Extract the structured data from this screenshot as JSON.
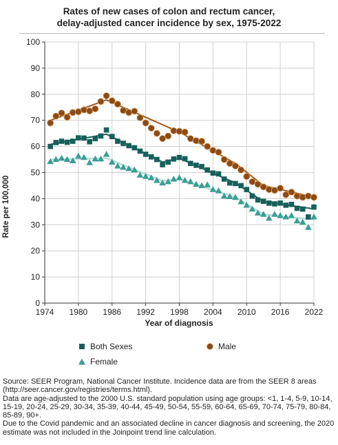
{
  "title_line1": "Rates of new cases of colon and rectum cancer,",
  "title_line2": "delay-adjusted cancer incidence by sex, 1975-2022",
  "legend": {
    "both": "Both Sexes",
    "male": "Male",
    "female": "Female"
  },
  "footer": {
    "line1": "Source: SEER Program, National Cancer Institute. Incidence data are from the SEER 8 areas (http://seer.cancer.gov/registries/terms.html).",
    "line2": "Data are age-adjusted to the 2000 U.S. standard population using age groups: <1, 1-4, 5-9, 10-14, 15-19, 20-24, 25-29, 30-34, 35-39, 40-44, 45-49, 50-54, 55-59, 60-64, 65-69, 70-74, 75-79, 80-84, 85-89, 90+.",
    "line3": "Due to the Covid pandemic and an associated decline in cancer diagnosis and screening, the 2020 estimate was not included in the Joinpoint trend line calculation."
  },
  "colors": {
    "both": "#17605a",
    "male": "#8b4a16",
    "female": "#3a9e94",
    "grid": "#cfcfcf"
  },
  "chart_data": {
    "type": "scatter",
    "title": "Rates of new cases of colon and rectum cancer, delay-adjusted cancer incidence by sex, 1975-2022",
    "xlabel": "Year of diagnosis",
    "ylabel": "Rate per 100,000",
    "xlim": [
      1974,
      2022
    ],
    "ylim": [
      0,
      100
    ],
    "x_ticks": [
      1974,
      1980,
      1986,
      1992,
      1998,
      2004,
      2010,
      2016,
      2022
    ],
    "y_ticks": [
      0,
      10,
      20,
      30,
      40,
      50,
      60,
      70,
      80,
      90,
      100
    ],
    "grid": true,
    "legend_position": "bottom",
    "x": [
      1975,
      1976,
      1977,
      1978,
      1979,
      1980,
      1981,
      1982,
      1983,
      1984,
      1985,
      1986,
      1987,
      1988,
      1989,
      1990,
      1991,
      1992,
      1993,
      1994,
      1995,
      1996,
      1997,
      1998,
      1999,
      2000,
      2001,
      2002,
      2003,
      2004,
      2005,
      2006,
      2007,
      2008,
      2009,
      2010,
      2011,
      2012,
      2013,
      2014,
      2015,
      2016,
      2017,
      2018,
      2019,
      2020,
      2021,
      2022
    ],
    "series": [
      {
        "name": "Male",
        "marker": "circle",
        "values": [
          69.0,
          71.6,
          72.8,
          71.2,
          73.0,
          73.3,
          74.0,
          73.6,
          74.4,
          77.2,
          79.4,
          77.5,
          76.2,
          73.8,
          73.0,
          73.5,
          71.0,
          69.0,
          67.0,
          65.0,
          63.0,
          64.0,
          66.0,
          65.8,
          65.5,
          63.0,
          62.2,
          62.0,
          60.0,
          58.5,
          57.8,
          55.0,
          53.5,
          52.5,
          51.0,
          48.5,
          46.5,
          45.5,
          44.5,
          43.5,
          43.2,
          44.0,
          41.5,
          42.5,
          41.0,
          40.5,
          41.0,
          40.5
        ],
        "trend": [
          [
            1975,
            70.0
          ],
          [
            1985,
            77.8
          ],
          [
            1998,
            65.5
          ],
          [
            2008,
            53.5
          ],
          [
            2013,
            45.0
          ],
          [
            2022,
            40.6
          ]
        ]
      },
      {
        "name": "Both Sexes",
        "marker": "square",
        "values": [
          60.0,
          61.5,
          62.0,
          61.6,
          62.0,
          63.3,
          63.2,
          61.8,
          63.0,
          64.0,
          66.3,
          63.8,
          62.0,
          61.2,
          60.3,
          59.5,
          58.2,
          57.0,
          56.0,
          55.0,
          53.0,
          54.0,
          55.2,
          55.8,
          55.3,
          53.5,
          52.8,
          52.3,
          51.0,
          49.8,
          49.5,
          47.5,
          46.0,
          45.8,
          45.0,
          43.5,
          41.0,
          39.5,
          39.0,
          38.3,
          38.0,
          38.3,
          37.5,
          37.8,
          36.3,
          36.0,
          33.0,
          36.8
        ],
        "trend": [
          [
            1975,
            60.8
          ],
          [
            1985,
            64.7
          ],
          [
            1995,
            54.0
          ],
          [
            1998,
            55.5
          ],
          [
            2008,
            46.0
          ],
          [
            2013,
            38.9
          ],
          [
            2022,
            36.1
          ]
        ]
      },
      {
        "name": "Female",
        "marker": "triangle",
        "values": [
          54.2,
          55.0,
          55.5,
          55.0,
          54.5,
          56.3,
          55.8,
          53.8,
          55.2,
          55.2,
          57.0,
          54.0,
          52.5,
          52.0,
          51.5,
          51.0,
          49.0,
          48.5,
          48.0,
          47.0,
          46.0,
          46.5,
          47.5,
          48.0,
          47.0,
          46.5,
          45.5,
          45.0,
          45.3,
          43.5,
          43.0,
          41.0,
          40.8,
          40.5,
          38.8,
          37.5,
          36.0,
          34.5,
          34.0,
          32.5,
          34.0,
          33.5,
          33.0,
          33.5,
          31.5,
          31.0,
          29.0,
          33.0
        ],
        "trend": [
          [
            1975,
            55.0
          ],
          [
            1985,
            55.5
          ],
          [
            1995,
            46.8
          ],
          [
            1998,
            47.5
          ],
          [
            2008,
            40.5
          ],
          [
            2013,
            34.0
          ],
          [
            2022,
            32.0
          ]
        ]
      }
    ]
  }
}
